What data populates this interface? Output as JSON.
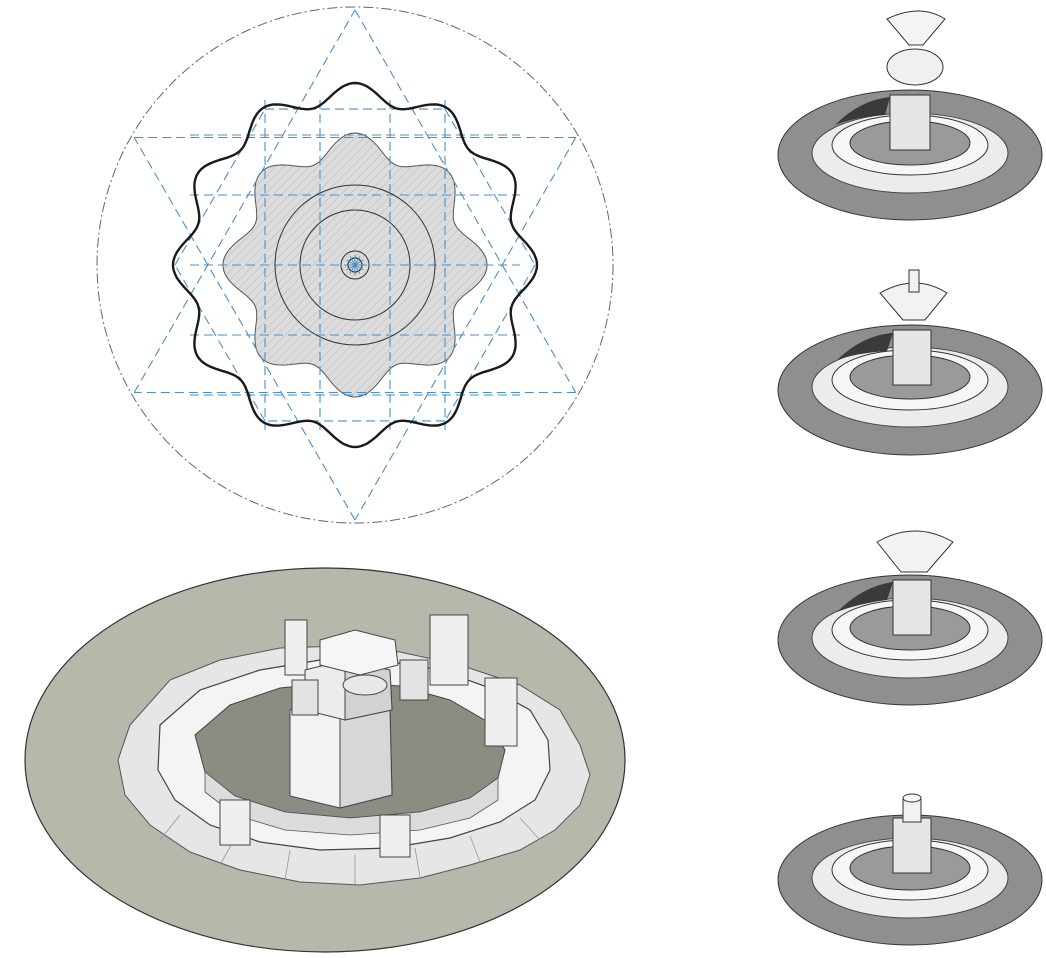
{
  "figure": {
    "panels": [
      {
        "id": "plan",
        "kind": "geometric construction plan of a lobed fountain basin"
      },
      {
        "id": "axonometric-main",
        "kind": "axonometric model of fountain basin without bowls"
      },
      {
        "id": "variant-1",
        "kind": "axonometric variant with two stacked bowls"
      },
      {
        "id": "variant-2",
        "kind": "axonometric variant with one bowl and spout"
      },
      {
        "id": "variant-3",
        "kind": "axonometric variant with one large bowl"
      },
      {
        "id": "variant-4",
        "kind": "axonometric variant with spout only"
      }
    ],
    "colors": {
      "construction_line": "#4a90c8",
      "outline": "#1a1a1a",
      "hatch_fill": "#d9d9d9",
      "ground_main": "#b7b8ac",
      "ground_small": "#8f8f8f",
      "stone_light": "#f2f2f2",
      "stone_shade": "#cfcfcf",
      "shadow": "#7d7e74"
    }
  }
}
